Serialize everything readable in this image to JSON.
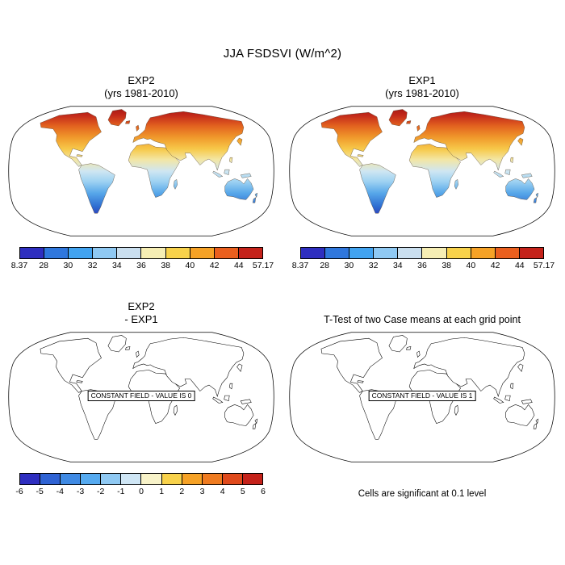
{
  "header": {
    "title": "JJA FSDSVI (W/m^2)"
  },
  "panels": {
    "exp2": {
      "title": "EXP2",
      "subtitle": "(yrs 1981-2010)"
    },
    "exp1": {
      "title": "EXP1",
      "subtitle": "(yrs 1981-2010)"
    },
    "diff": {
      "title": "EXP2",
      "subtitle": "- EXP1",
      "overlay": "CONSTANT FIELD - VALUE IS 0"
    },
    "ttest": {
      "title": "T-Test of two Case means at each grid point",
      "overlay": "CONSTANT FIELD - VALUE IS 1",
      "caption": "Cells are significant at 0.1 level"
    }
  },
  "colorbars": {
    "top": {
      "labels": [
        "8.37",
        "28",
        "30",
        "32",
        "34",
        "36",
        "38",
        "40",
        "42",
        "44",
        "57.17"
      ],
      "colors": [
        "#2e2ec0",
        "#2f77dd",
        "#41a3f0",
        "#8fc9f3",
        "#cadfef",
        "#f6eeb4",
        "#f8d24b",
        "#f6a226",
        "#ea5f1e",
        "#c5221a"
      ]
    },
    "diff": {
      "labels": [
        "-6",
        "-5",
        "-4",
        "-3",
        "-2",
        "-1",
        "0",
        "1",
        "2",
        "3",
        "4",
        "5",
        "6"
      ],
      "colors": [
        "#2e2ec0",
        "#2f63d4",
        "#3f8ae4",
        "#55aaf0",
        "#8fc9f3",
        "#cfe6f5",
        "#f8f3c9",
        "#f8d24b",
        "#f6a226",
        "#ef7b20",
        "#e04a1c",
        "#c5221a"
      ]
    }
  },
  "chart_data": [
    {
      "type": "heatmap",
      "panel": "top-left",
      "title": "EXP2",
      "subtitle": "(yrs 1981-2010)",
      "variable": "JJA FSDSVI (W/m^2)",
      "projection": "Robinson world map, land-only shading",
      "min": 8.37,
      "max": 57.17,
      "contour_levels": [
        28,
        30,
        32,
        34,
        36,
        38,
        40,
        42,
        44
      ],
      "palette": [
        "#2e2ec0",
        "#2f77dd",
        "#41a3f0",
        "#8fc9f3",
        "#cadfef",
        "#f6eeb4",
        "#f8d24b",
        "#f6a226",
        "#ea5f1e",
        "#c5221a"
      ],
      "pattern": "High values (~44-57, dark red) over Arctic/Greenland/northern Canada and Siberia; yellow-orange (~36-44) across northern mid-latitudes and Sahara; pale blue (~32-36) near the equator; blue to dark blue/purple (~8-30) over Southern Hemisphere land, darkest at Patagonia and New Zealand"
    },
    {
      "type": "heatmap",
      "panel": "top-right",
      "title": "EXP1",
      "subtitle": "(yrs 1981-2010)",
      "variable": "JJA FSDSVI (W/m^2)",
      "projection": "Robinson world map, land-only shading",
      "min": 8.37,
      "max": 57.17,
      "contour_levels": [
        28,
        30,
        32,
        34,
        36,
        38,
        40,
        42,
        44
      ],
      "palette": [
        "#2e2ec0",
        "#2f77dd",
        "#41a3f0",
        "#8fc9f3",
        "#cadfef",
        "#f6eeb4",
        "#f8d24b",
        "#f6a226",
        "#ea5f1e",
        "#c5221a"
      ],
      "pattern": "Visually identical to EXP2 panel: red northern high latitudes grading through yellow/orange mid-latitudes to blue/dark-blue Southern Hemisphere land"
    },
    {
      "type": "heatmap",
      "panel": "bottom-left",
      "title": "EXP2 - EXP1",
      "projection": "Robinson world map, outlines only",
      "constant_field_message": "CONSTANT FIELD - VALUE IS 0",
      "contour_levels": [
        -6,
        -5,
        -4,
        -3,
        -2,
        -1,
        0,
        1,
        2,
        3,
        4,
        5,
        6
      ],
      "palette": [
        "#2e2ec0",
        "#2f63d4",
        "#3f8ae4",
        "#55aaf0",
        "#8fc9f3",
        "#cfe6f5",
        "#f8f3c9",
        "#f8d24b",
        "#f6a226",
        "#ef7b20",
        "#e04a1c",
        "#c5221a"
      ],
      "pattern": "Difference field is constant zero everywhere; map drawn with coastlines only, no shading"
    },
    {
      "type": "heatmap",
      "panel": "bottom-right",
      "title": "T-Test of two Case means at each grid point",
      "projection": "Robinson world map, outlines only",
      "constant_field_message": "CONSTANT FIELD - VALUE IS 1",
      "caption": "Cells are significant at 0.1 level",
      "pattern": "T-test field is constant 1 everywhere; map drawn with coastlines only, no shading"
    }
  ]
}
